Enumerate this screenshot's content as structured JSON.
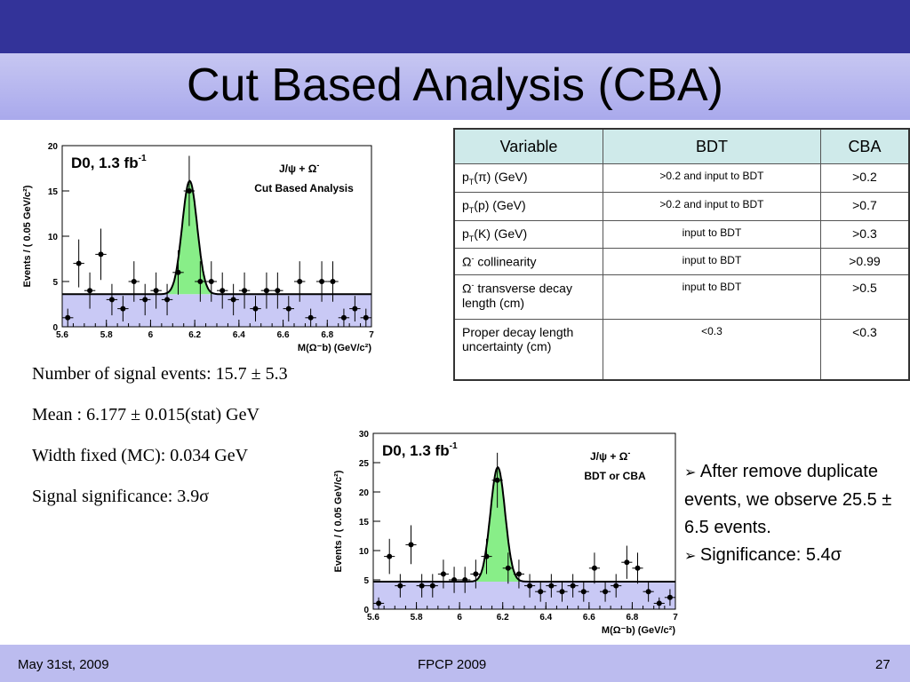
{
  "slide": {
    "title": "Cut Based Analysis (CBA)"
  },
  "plot1": {
    "label": "D0, 1.3 fb",
    "label_sup": "-1",
    "channel": "J/ψ + Ω",
    "channel_sup": "-",
    "analysis": "Cut Based Analysis",
    "ylabel": "Events / ( 0.05 GeV/c²)",
    "xlabel": "M(Ω⁻b) (GeV/c²)",
    "xticks": [
      "5.6",
      "5.8",
      "6",
      "6.2",
      "6.4",
      "6.6",
      "6.8",
      "7"
    ],
    "yticks": [
      "0",
      "5",
      "10",
      "15",
      "20"
    ]
  },
  "plot2": {
    "label": "D0, 1.3 fb",
    "label_sup": "-1",
    "channel": "J/ψ + Ω",
    "channel_sup": "-",
    "analysis": "BDT or CBA",
    "ylabel": "Events / ( 0.05 GeV/c²)",
    "xlabel": "M(Ω⁻b) (GeV/c²)",
    "xticks": [
      "5.6",
      "5.8",
      "6",
      "6.2",
      "6.4",
      "6.6",
      "6.8",
      "7"
    ],
    "yticks": [
      "0",
      "5",
      "10",
      "15",
      "20",
      "25",
      "30"
    ]
  },
  "chart_data": [
    {
      "type": "scatter",
      "xlim": [
        5.6,
        7.0
      ],
      "ylim": [
        0,
        20
      ],
      "x": [
        5.625,
        5.675,
        5.725,
        5.775,
        5.825,
        5.875,
        5.925,
        5.975,
        6.025,
        6.075,
        6.125,
        6.175,
        6.225,
        6.275,
        6.325,
        6.375,
        6.425,
        6.475,
        6.525,
        6.575,
        6.625,
        6.675,
        6.725,
        6.775,
        6.825,
        6.875,
        6.925,
        6.975
      ],
      "y": [
        1,
        7,
        4,
        8,
        3,
        2,
        5,
        3,
        4,
        3,
        6,
        15,
        5,
        5,
        4,
        3,
        4,
        2,
        4,
        4,
        2,
        5,
        1,
        5,
        5,
        1,
        2,
        1
      ],
      "background_level": 3.6,
      "signal_mean": 6.177,
      "signal_width": 0.034,
      "signal_peak": 12.5
    },
    {
      "type": "scatter",
      "xlim": [
        5.6,
        7.0
      ],
      "ylim": [
        0,
        30
      ],
      "x": [
        5.625,
        5.675,
        5.725,
        5.775,
        5.825,
        5.875,
        5.925,
        5.975,
        6.025,
        6.075,
        6.125,
        6.175,
        6.225,
        6.275,
        6.325,
        6.375,
        6.425,
        6.475,
        6.525,
        6.575,
        6.625,
        6.675,
        6.725,
        6.775,
        6.825,
        6.875,
        6.925,
        6.975
      ],
      "y": [
        1,
        9,
        4,
        11,
        4,
        4,
        6,
        5,
        5,
        6,
        9,
        22,
        7,
        6,
        4,
        3,
        4,
        3,
        4,
        3,
        7,
        3,
        4,
        8,
        7,
        3,
        1,
        2
      ],
      "background_level": 4.7,
      "signal_mean": 6.177,
      "signal_width": 0.034,
      "signal_peak": 19.5
    }
  ],
  "table": {
    "headers": [
      "Variable",
      "BDT",
      "CBA"
    ],
    "rows": [
      {
        "var": "p",
        "sub": "T",
        "rest": "(π) (GeV)",
        "bdt": ">0.2 and input to BDT",
        "cba": ">0.2"
      },
      {
        "var": "p",
        "sub": "T",
        "rest": "(p) (GeV)",
        "bdt": ">0.2 and input to BDT",
        "cba": ">0.7"
      },
      {
        "var": "p",
        "sub": "T",
        "rest": "(K) (GeV)",
        "bdt": "input to BDT",
        "cba": ">0.3"
      },
      {
        "var": "Ω",
        "sup": "-",
        "rest": " collinearity",
        "bdt": "input to BDT",
        "cba": ">0.99"
      },
      {
        "var": "Ω",
        "sup": "-",
        "rest": "  transverse decay length (cm)",
        "bdt": "input to BDT",
        "cba": ">0.5"
      },
      {
        "var": "Proper decay length uncertainty (cm)",
        "bdt": "<0.3",
        "cba": "<0.3"
      }
    ]
  },
  "results": {
    "signal_events": "Number of  signal events:  15.7 ± 5.3",
    "mean": "Mean : 6.177 ± 0.015(stat) GeV",
    "width": "Width fixed (MC): 0.034 GeV",
    "significance": "Signal significance: 3.9σ"
  },
  "bullets": {
    "b1": "After  remove duplicate events, we observe 25.5 ± 6.5 events.",
    "b2": "Significance: 5.4σ"
  },
  "footer": {
    "date": "May 31st, 2009",
    "conference": "FPCP 2009",
    "page": "27"
  }
}
